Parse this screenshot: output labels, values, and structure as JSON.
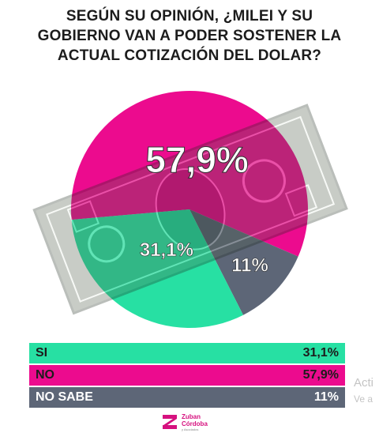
{
  "title_lines": [
    "SEGÚN SU OPINIÓN, ¿MILEI Y SU",
    "GOBIERNO VAN A PODER SOSTENER LA",
    "ACTUAL COTIZACIÓN DEL DOLAR?"
  ],
  "chart_data": {
    "type": "pie",
    "title": "SEGÚN SU OPINIÓN, ¿MILEI Y SU GOBIERNO VAN A PODER SOSTENER LA ACTUAL COTIZACIÓN DEL DOLAR?",
    "slices": [
      {
        "label": "SI",
        "value": 31.1,
        "display": "31,1%",
        "color": "#27e0a3"
      },
      {
        "label": "NO",
        "value": 57.9,
        "display": "57,9%",
        "color": "#ec0b8e"
      },
      {
        "label": "NO SABE",
        "value": 11,
        "display": "11%",
        "color": "#5d6677"
      }
    ],
    "legend_position": "bottom"
  },
  "legend": [
    {
      "label": "SI",
      "value": "31,1%",
      "color": "#27e0a3",
      "text_color": "#1c1c1c"
    },
    {
      "label": "NO",
      "value": "57,9%",
      "color": "#ec0b8e",
      "text_color": "#1c1c1c"
    },
    {
      "label": "NO SABE",
      "value": "11%",
      "color": "#5d6677",
      "text_color": "#ffffff"
    }
  ],
  "side_overlay": {
    "line1": "Acti",
    "line2": "Ve a"
  },
  "logo": {
    "name_line1": "Zuban",
    "name_line2": "Córdoba",
    "subtitle": "y Asociados",
    "icon": "zuban-cordoba-logo-icon"
  }
}
